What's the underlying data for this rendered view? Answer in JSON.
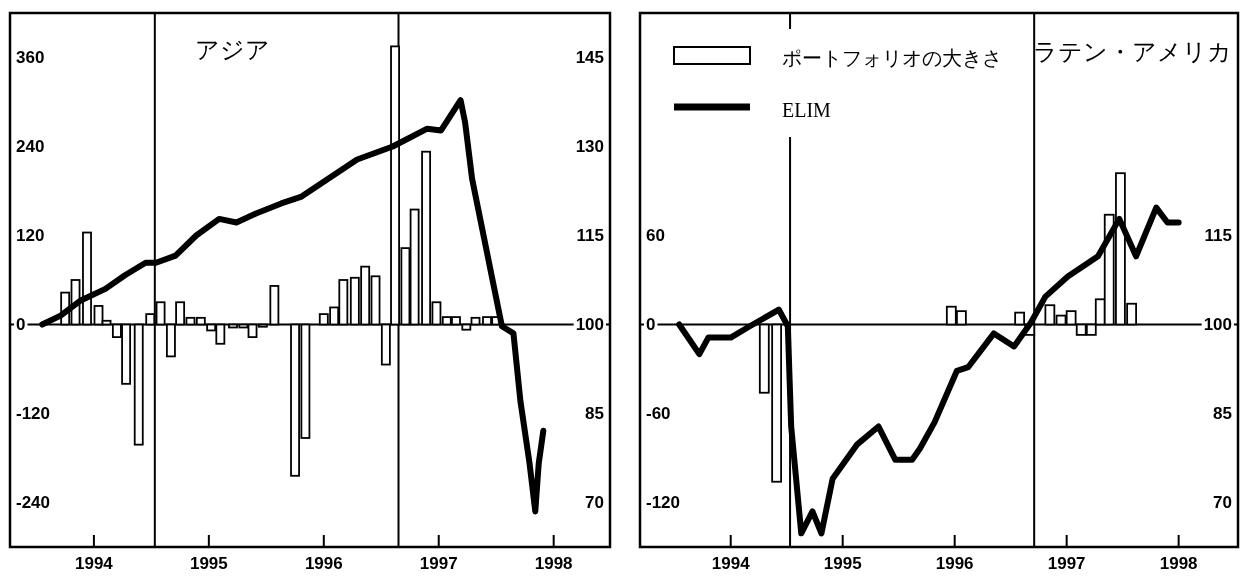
{
  "chart_data": [
    {
      "type": "bar",
      "title": "アジア",
      "xlim": [
        1993.77,
        1998.99
      ],
      "xticks": [
        {
          "value": 1994.5,
          "label": "1994"
        },
        {
          "value": 1995.5,
          "label": "1995"
        },
        {
          "value": 1996.5,
          "label": "1996"
        },
        {
          "value": 1997.5,
          "label": "1997"
        },
        {
          "value": 1998.5,
          "label": "1998"
        }
      ],
      "ylim": [
        -300,
        420
      ],
      "yticks": [
        -240,
        -120,
        0,
        120,
        240,
        360
      ],
      "y2lim": [
        62.5,
        152.5
      ],
      "y2ticks": [
        70,
        85,
        100,
        115,
        130,
        145
      ],
      "ref_lines": [
        {
          "axis": "y",
          "value": 0,
          "color": "#000000"
        },
        {
          "axis": "x",
          "value": 1995.03,
          "color": "#000000"
        },
        {
          "axis": "x",
          "value": 1997.15,
          "color": "#000000"
        }
      ],
      "series": [
        {
          "color": "#ffffff",
          "x": [
            1994.25,
            1994.34,
            1994.44,
            1994.54,
            1994.61,
            1994.7,
            1994.78,
            1994.89,
            1994.99,
            1995.08,
            1995.17,
            1995.25,
            1995.34,
            1995.43,
            1995.52,
            1995.6,
            1995.71,
            1995.8,
            1995.88,
            1995.97,
            1996.07,
            1996.25,
            1996.34,
            1996.5,
            1996.59,
            1996.67,
            1996.77,
            1996.86,
            1996.95,
            1997.04,
            1997.12,
            1997.21,
            1997.29,
            1997.39,
            1997.48,
            1997.57,
            1997.65,
            1997.74,
            1997.82,
            1997.92,
            1998.0
          ],
          "values": [
            43,
            60,
            124,
            25,
            5,
            -17,
            -80,
            -162,
            14,
            30,
            -43,
            30,
            9,
            9,
            -8,
            -26,
            -4,
            -4,
            -17,
            -3,
            52,
            -204,
            -153,
            14,
            23,
            60,
            63,
            78,
            65,
            -54,
            375,
            103,
            155,
            233,
            30,
            10,
            10,
            -7,
            9,
            10,
            10
          ]
        },
        {
          "type": "line",
          "axis": "y2",
          "color": "#000000",
          "x": [
            1994.05,
            1994.21,
            1994.38,
            1994.6,
            1994.77,
            1994.95,
            1995.04,
            1995.21,
            1995.39,
            1995.59,
            1995.74,
            1995.91,
            1996.13,
            1996.3,
            1996.79,
            1997.1,
            1997.4,
            1997.52,
            1997.69,
            1997.73,
            1997.79,
            1997.92,
            1998.05,
            1998.15,
            1998.21,
            1998.29,
            1998.34,
            1998.37,
            1998.41
          ],
          "values": [
            100,
            101.5,
            104,
            106,
            108.3,
            110.4,
            110.4,
            111.6,
            115,
            117.8,
            117.2,
            118.7,
            120.4,
            121.5,
            127.8,
            130,
            133,
            132.7,
            137.8,
            134,
            124.6,
            112.1,
            99.7,
            98.5,
            87.2,
            76.6,
            68.5,
            76.6,
            82.1
          ]
        }
      ]
    },
    {
      "type": "bar",
      "title": "ラテン・アメリカ",
      "legend": "top left",
      "xlim": [
        1993.69,
        1999.03
      ],
      "xticks": [
        {
          "value": 1994.5,
          "label": "1994"
        },
        {
          "value": 1995.5,
          "label": "1995"
        },
        {
          "value": 1996.5,
          "label": "1996"
        },
        {
          "value": 1997.5,
          "label": "1997"
        },
        {
          "value": 1998.5,
          "label": "1998"
        }
      ],
      "ylim": [
        -150,
        210
      ],
      "yticks": [
        -120,
        -60,
        0,
        60
      ],
      "y2lim": [
        62.5,
        152.5
      ],
      "y2ticks": [
        70,
        85,
        100,
        115
      ],
      "ref_lines": [
        {
          "axis": "y",
          "value": 0,
          "color": "#000000"
        },
        {
          "axis": "x",
          "value": 1995.03,
          "color": "#000000"
        },
        {
          "axis": "x",
          "value": 1997.21,
          "color": "#000000"
        }
      ],
      "series": [
        {
          "name": "ポートフォリオの大きさ",
          "color": "#ffffff",
          "x": [
            1994.8,
            1994.91,
            1996.47,
            1996.56,
            1997.08,
            1997.17,
            1997.35,
            1997.45,
            1997.54,
            1997.63,
            1997.72,
            1997.8,
            1997.88,
            1997.98,
            1998.08
          ],
          "values": [
            -46,
            -106,
            12,
            9,
            8,
            -7,
            13,
            6,
            9,
            -7,
            -7,
            17,
            74,
            102,
            14
          ]
        },
        {
          "type": "line",
          "name": "ELIM",
          "axis": "y2",
          "color": "#000000",
          "x": [
            1994.04,
            1994.22,
            1994.3,
            1994.5,
            1994.67,
            1994.93,
            1995.01,
            1995.04,
            1995.13,
            1995.23,
            1995.31,
            1995.41,
            1995.63,
            1995.82,
            1995.97,
            1996.12,
            1996.19,
            1996.32,
            1996.52,
            1996.62,
            1996.85,
            1997.03,
            1997.18,
            1997.31,
            1997.51,
            1997.78,
            1997.97,
            1998.12,
            1998.3,
            1998.4,
            1998.5
          ],
          "values": [
            100,
            95,
            97.8,
            97.8,
            99.7,
            102.5,
            99.7,
            82.8,
            64.8,
            68.5,
            64.8,
            74,
            79.8,
            82.8,
            77.2,
            77.2,
            79.1,
            83.5,
            92.2,
            92.8,
            98.5,
            96.3,
            100.3,
            104.7,
            108.1,
            111.5,
            117.8,
            111.5,
            119.7,
            117.2,
            117.2
          ]
        }
      ]
    }
  ]
}
